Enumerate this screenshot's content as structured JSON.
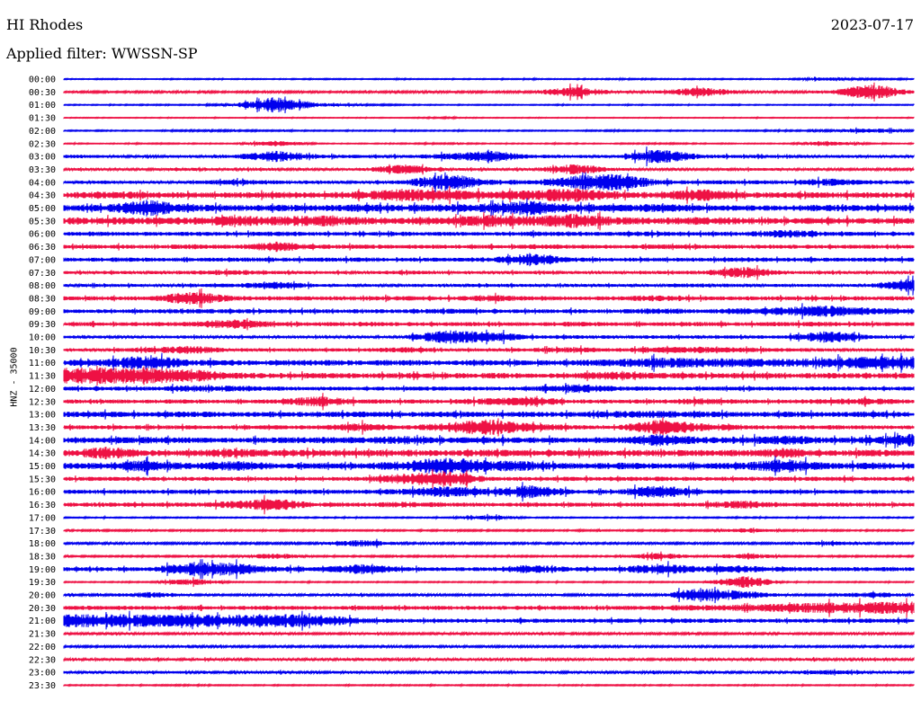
{
  "header": {
    "station": "HI Rhodes",
    "date": "2023-07-17",
    "filter_label": "Applied filter: WWSSN-SP",
    "channel_label": "HNZ - 35000"
  },
  "chart_data": {
    "type": "line",
    "title": "HI Rhodes",
    "subtitle": "Applied filter: WWSSN-SP",
    "ylabel": "HNZ - 35000",
    "colors": [
      "#0000ee",
      "#ee1144"
    ],
    "grid": false,
    "legend": "none",
    "series": [
      {
        "time": "00:00",
        "activity": [
          0.05,
          0.05,
          0.04,
          0.06,
          0.05,
          0.05,
          0.06,
          0.05,
          0.06,
          0.05,
          0.05,
          0.06,
          0.05,
          0.07,
          0.07,
          0.06,
          0.06,
          0.05,
          0.2,
          0.08,
          0.06
        ]
      },
      {
        "time": "00:30",
        "activity": [
          0.08,
          0.1,
          0.09,
          0.12,
          0.09,
          0.1,
          0.1,
          0.09,
          0.12,
          0.11,
          0.1,
          0.11,
          0.55,
          0.12,
          0.15,
          0.5,
          0.12,
          0.1,
          0.18,
          0.8,
          0.15
        ]
      },
      {
        "time": "01:00",
        "activity": [
          0.05,
          0.05,
          0.06,
          0.05,
          0.15,
          0.85,
          0.2,
          0.1,
          0.06,
          0.05,
          0.05,
          0.05,
          0.05,
          0.05,
          0.05,
          0.05,
          0.05,
          0.05,
          0.05,
          0.05,
          0.05
        ]
      },
      {
        "time": "01:30",
        "activity": [
          0.04,
          0.04,
          0.04,
          0.04,
          0.04,
          0.04,
          0.04,
          0.04,
          0.04,
          0.08,
          0.04,
          0.04,
          0.04,
          0.04,
          0.04,
          0.04,
          0.04,
          0.04,
          0.04,
          0.04,
          0.04
        ]
      },
      {
        "time": "02:00",
        "activity": [
          0.05,
          0.06,
          0.05,
          0.1,
          0.08,
          0.07,
          0.06,
          0.05,
          0.07,
          0.06,
          0.05,
          0.06,
          0.05,
          0.07,
          0.06,
          0.05,
          0.06,
          0.07,
          0.1,
          0.25,
          0.08
        ]
      },
      {
        "time": "02:30",
        "activity": [
          0.06,
          0.05,
          0.06,
          0.06,
          0.05,
          0.3,
          0.06,
          0.05,
          0.06,
          0.07,
          0.06,
          0.05,
          0.06,
          0.05,
          0.08,
          0.06,
          0.05,
          0.06,
          0.25,
          0.06,
          0.05
        ]
      },
      {
        "time": "03:00",
        "activity": [
          0.2,
          0.15,
          0.12,
          0.15,
          0.18,
          0.6,
          0.2,
          0.18,
          0.15,
          0.3,
          0.6,
          0.2,
          0.15,
          0.14,
          0.8,
          0.2,
          0.18,
          0.15,
          0.14,
          0.15,
          0.15
        ]
      },
      {
        "time": "03:30",
        "activity": [
          0.15,
          0.12,
          0.12,
          0.15,
          0.14,
          0.14,
          0.12,
          0.12,
          0.5,
          0.15,
          0.14,
          0.13,
          0.55,
          0.14,
          0.13,
          0.12,
          0.15,
          0.13,
          0.12,
          0.12,
          0.13
        ]
      },
      {
        "time": "04:00",
        "activity": [
          0.15,
          0.18,
          0.15,
          0.16,
          0.3,
          0.2,
          0.18,
          0.16,
          0.2,
          0.95,
          0.3,
          0.2,
          0.7,
          0.9,
          0.25,
          0.2,
          0.2,
          0.2,
          0.4,
          0.2,
          0.18
        ]
      },
      {
        "time": "04:30",
        "activity": [
          0.3,
          0.4,
          0.35,
          0.3,
          0.3,
          0.35,
          0.3,
          0.4,
          0.7,
          0.55,
          0.4,
          0.5,
          0.75,
          0.4,
          0.3,
          0.65,
          0.3,
          0.3,
          0.3,
          0.3,
          0.3
        ]
      },
      {
        "time": "05:00",
        "activity": [
          0.3,
          0.35,
          0.9,
          0.35,
          0.3,
          0.35,
          0.3,
          0.4,
          0.35,
          0.4,
          0.45,
          0.8,
          0.4,
          0.35,
          0.45,
          0.3,
          0.3,
          0.3,
          0.35,
          0.3,
          0.3
        ]
      },
      {
        "time": "05:30",
        "activity": [
          0.35,
          0.4,
          0.35,
          0.4,
          0.55,
          0.45,
          0.6,
          0.4,
          0.35,
          0.4,
          0.65,
          0.5,
          0.8,
          0.4,
          0.35,
          0.4,
          0.35,
          0.3,
          0.35,
          0.3,
          0.3
        ]
      },
      {
        "time": "06:00",
        "activity": [
          0.2,
          0.22,
          0.2,
          0.2,
          0.2,
          0.25,
          0.2,
          0.2,
          0.22,
          0.2,
          0.2,
          0.25,
          0.22,
          0.2,
          0.25,
          0.2,
          0.22,
          0.45,
          0.2,
          0.2,
          0.2
        ]
      },
      {
        "time": "06:30",
        "activity": [
          0.2,
          0.22,
          0.2,
          0.25,
          0.2,
          0.55,
          0.25,
          0.22,
          0.2,
          0.22,
          0.2,
          0.25,
          0.22,
          0.2,
          0.25,
          0.22,
          0.2,
          0.22,
          0.2,
          0.2,
          0.2
        ]
      },
      {
        "time": "07:00",
        "activity": [
          0.2,
          0.22,
          0.22,
          0.2,
          0.2,
          0.22,
          0.2,
          0.22,
          0.2,
          0.2,
          0.22,
          0.7,
          0.22,
          0.2,
          0.22,
          0.2,
          0.25,
          0.22,
          0.2,
          0.22,
          0.2
        ]
      },
      {
        "time": "07:30",
        "activity": [
          0.15,
          0.16,
          0.15,
          0.2,
          0.3,
          0.16,
          0.15,
          0.15,
          0.2,
          0.16,
          0.15,
          0.16,
          0.15,
          0.16,
          0.15,
          0.2,
          0.6,
          0.15,
          0.16,
          0.15,
          0.15
        ]
      },
      {
        "time": "08:00",
        "activity": [
          0.15,
          0.16,
          0.15,
          0.16,
          0.2,
          0.4,
          0.16,
          0.15,
          0.16,
          0.15,
          0.16,
          0.15,
          0.16,
          0.15,
          0.16,
          0.2,
          0.16,
          0.15,
          0.16,
          0.15,
          0.8
        ]
      },
      {
        "time": "08:30",
        "activity": [
          0.2,
          0.22,
          0.2,
          0.75,
          0.25,
          0.22,
          0.2,
          0.22,
          0.25,
          0.2,
          0.35,
          0.22,
          0.2,
          0.22,
          0.3,
          0.22,
          0.2,
          0.22,
          0.2,
          0.22,
          0.2
        ]
      },
      {
        "time": "09:00",
        "activity": [
          0.2,
          0.22,
          0.2,
          0.25,
          0.2,
          0.22,
          0.2,
          0.22,
          0.2,
          0.25,
          0.22,
          0.2,
          0.22,
          0.2,
          0.3,
          0.22,
          0.35,
          0.45,
          0.6,
          0.35,
          0.3
        ]
      },
      {
        "time": "09:30",
        "activity": [
          0.2,
          0.22,
          0.2,
          0.25,
          0.55,
          0.22,
          0.2,
          0.25,
          0.22,
          0.2,
          0.22,
          0.2,
          0.25,
          0.22,
          0.2,
          0.22,
          0.2,
          0.22,
          0.25,
          0.2,
          0.2
        ]
      },
      {
        "time": "10:00",
        "activity": [
          0.15,
          0.16,
          0.15,
          0.16,
          0.15,
          0.16,
          0.15,
          0.16,
          0.15,
          0.75,
          0.55,
          0.2,
          0.18,
          0.16,
          0.2,
          0.18,
          0.16,
          0.18,
          0.65,
          0.18,
          0.15
        ]
      },
      {
        "time": "10:30",
        "activity": [
          0.15,
          0.16,
          0.25,
          0.45,
          0.16,
          0.15,
          0.18,
          0.16,
          0.3,
          0.15,
          0.16,
          0.2,
          0.3,
          0.2,
          0.3,
          0.35,
          0.25,
          0.2,
          0.18,
          0.16,
          0.15
        ]
      },
      {
        "time": "11:00",
        "activity": [
          0.3,
          0.35,
          0.85,
          0.3,
          0.3,
          0.25,
          0.3,
          0.25,
          0.3,
          0.25,
          0.3,
          0.25,
          0.3,
          0.4,
          0.55,
          0.5,
          0.45,
          0.4,
          0.5,
          0.7,
          0.75
        ]
      },
      {
        "time": "11:30",
        "activity": [
          0.85,
          0.85,
          0.8,
          0.7,
          0.3,
          0.25,
          0.3,
          0.25,
          0.3,
          0.25,
          0.3,
          0.25,
          0.3,
          0.45,
          0.3,
          0.25,
          0.3,
          0.25,
          0.3,
          0.25,
          0.25
        ]
      },
      {
        "time": "12:00",
        "activity": [
          0.2,
          0.22,
          0.2,
          0.35,
          0.3,
          0.22,
          0.2,
          0.22,
          0.2,
          0.22,
          0.2,
          0.22,
          0.5,
          0.25,
          0.22,
          0.2,
          0.22,
          0.2,
          0.22,
          0.2,
          0.2
        ]
      },
      {
        "time": "12:30",
        "activity": [
          0.2,
          0.22,
          0.2,
          0.22,
          0.2,
          0.22,
          0.55,
          0.22,
          0.2,
          0.22,
          0.35,
          0.5,
          0.22,
          0.2,
          0.22,
          0.35,
          0.22,
          0.2,
          0.3,
          0.35,
          0.2
        ]
      },
      {
        "time": "13:00",
        "activity": [
          0.3,
          0.3,
          0.25,
          0.3,
          0.25,
          0.3,
          0.25,
          0.3,
          0.25,
          0.3,
          0.25,
          0.3,
          0.25,
          0.35,
          0.4,
          0.3,
          0.25,
          0.3,
          0.25,
          0.3,
          0.25
        ]
      },
      {
        "time": "13:30",
        "activity": [
          0.2,
          0.22,
          0.2,
          0.22,
          0.2,
          0.22,
          0.2,
          0.45,
          0.2,
          0.5,
          0.85,
          0.4,
          0.22,
          0.2,
          0.8,
          0.45,
          0.22,
          0.2,
          0.22,
          0.2,
          0.2
        ]
      },
      {
        "time": "14:00",
        "activity": [
          0.25,
          0.3,
          0.35,
          0.3,
          0.25,
          0.3,
          0.35,
          0.3,
          0.45,
          0.3,
          0.35,
          0.3,
          0.25,
          0.3,
          0.65,
          0.3,
          0.35,
          0.5,
          0.3,
          0.35,
          0.7
        ]
      },
      {
        "time": "14:30",
        "activity": [
          0.3,
          0.65,
          0.35,
          0.3,
          0.5,
          0.3,
          0.35,
          0.3,
          0.35,
          0.3,
          0.35,
          0.3,
          0.35,
          0.3,
          0.35,
          0.3,
          0.35,
          0.55,
          0.3,
          0.35,
          0.3
        ]
      },
      {
        "time": "15:00",
        "activity": [
          0.3,
          0.35,
          0.65,
          0.3,
          0.55,
          0.3,
          0.3,
          0.3,
          0.5,
          0.95,
          0.6,
          0.5,
          0.3,
          0.35,
          0.3,
          0.3,
          0.35,
          0.75,
          0.3,
          0.35,
          0.3
        ]
      },
      {
        "time": "15:30",
        "activity": [
          0.2,
          0.22,
          0.2,
          0.22,
          0.2,
          0.22,
          0.2,
          0.22,
          0.55,
          0.85,
          0.22,
          0.2,
          0.22,
          0.2,
          0.22,
          0.2,
          0.22,
          0.2,
          0.22,
          0.2,
          0.2
        ]
      },
      {
        "time": "16:00",
        "activity": [
          0.2,
          0.22,
          0.2,
          0.22,
          0.2,
          0.22,
          0.2,
          0.22,
          0.3,
          0.6,
          0.3,
          0.7,
          0.22,
          0.2,
          0.75,
          0.22,
          0.2,
          0.22,
          0.2,
          0.22,
          0.2
        ]
      },
      {
        "time": "16:30",
        "activity": [
          0.2,
          0.22,
          0.2,
          0.22,
          0.4,
          0.65,
          0.22,
          0.2,
          0.3,
          0.22,
          0.2,
          0.22,
          0.2,
          0.22,
          0.2,
          0.22,
          0.45,
          0.2,
          0.22,
          0.2,
          0.2
        ]
      },
      {
        "time": "17:00",
        "activity": [
          0.06,
          0.06,
          0.06,
          0.06,
          0.06,
          0.06,
          0.06,
          0.06,
          0.06,
          0.06,
          0.25,
          0.06,
          0.06,
          0.06,
          0.06,
          0.06,
          0.06,
          0.06,
          0.06,
          0.06,
          0.06
        ]
      },
      {
        "time": "17:30",
        "activity": [
          0.08,
          0.08,
          0.08,
          0.08,
          0.08,
          0.08,
          0.08,
          0.08,
          0.08,
          0.08,
          0.08,
          0.08,
          0.08,
          0.08,
          0.08,
          0.08,
          0.25,
          0.08,
          0.08,
          0.08,
          0.08
        ]
      },
      {
        "time": "18:00",
        "activity": [
          0.1,
          0.12,
          0.1,
          0.12,
          0.1,
          0.12,
          0.1,
          0.35,
          0.12,
          0.1,
          0.12,
          0.1,
          0.12,
          0.1,
          0.12,
          0.1,
          0.12,
          0.1,
          0.25,
          0.12,
          0.1
        ]
      },
      {
        "time": "18:30",
        "activity": [
          0.08,
          0.08,
          0.08,
          0.08,
          0.08,
          0.3,
          0.08,
          0.08,
          0.08,
          0.08,
          0.08,
          0.08,
          0.08,
          0.08,
          0.35,
          0.08,
          0.3,
          0.08,
          0.08,
          0.08,
          0.08
        ]
      },
      {
        "time": "19:00",
        "activity": [
          0.2,
          0.22,
          0.2,
          0.7,
          0.65,
          0.3,
          0.22,
          0.55,
          0.22,
          0.2,
          0.22,
          0.45,
          0.22,
          0.2,
          0.6,
          0.3,
          0.4,
          0.22,
          0.2,
          0.22,
          0.2
        ]
      },
      {
        "time": "19:30",
        "activity": [
          0.06,
          0.06,
          0.06,
          0.35,
          0.06,
          0.06,
          0.06,
          0.06,
          0.06,
          0.06,
          0.06,
          0.06,
          0.06,
          0.06,
          0.06,
          0.06,
          0.6,
          0.06,
          0.06,
          0.06,
          0.06
        ]
      },
      {
        "time": "20:00",
        "activity": [
          0.1,
          0.12,
          0.3,
          0.12,
          0.1,
          0.12,
          0.1,
          0.12,
          0.1,
          0.12,
          0.1,
          0.12,
          0.1,
          0.12,
          0.1,
          0.75,
          0.4,
          0.12,
          0.1,
          0.35,
          0.1
        ]
      },
      {
        "time": "20:30",
        "activity": [
          0.2,
          0.22,
          0.2,
          0.22,
          0.2,
          0.22,
          0.2,
          0.22,
          0.2,
          0.22,
          0.2,
          0.22,
          0.2,
          0.22,
          0.25,
          0.3,
          0.35,
          0.45,
          0.55,
          0.6,
          0.65
        ]
      },
      {
        "time": "21:00",
        "activity": [
          0.65,
          0.7,
          0.65,
          0.7,
          0.65,
          0.7,
          0.65,
          0.3,
          0.2,
          0.22,
          0.2,
          0.22,
          0.2,
          0.22,
          0.2,
          0.22,
          0.2,
          0.22,
          0.2,
          0.22,
          0.2
        ]
      },
      {
        "time": "21:30",
        "activity": [
          0.1,
          0.12,
          0.1,
          0.12,
          0.1,
          0.12,
          0.1,
          0.12,
          0.1,
          0.12,
          0.1,
          0.12,
          0.1,
          0.12,
          0.1,
          0.12,
          0.1,
          0.12,
          0.1,
          0.12,
          0.1
        ]
      },
      {
        "time": "22:00",
        "activity": [
          0.1,
          0.12,
          0.1,
          0.12,
          0.1,
          0.12,
          0.1,
          0.12,
          0.1,
          0.12,
          0.1,
          0.12,
          0.1,
          0.12,
          0.1,
          0.12,
          0.1,
          0.12,
          0.1,
          0.12,
          0.1
        ]
      },
      {
        "time": "22:30",
        "activity": [
          0.12,
          0.14,
          0.12,
          0.14,
          0.12,
          0.14,
          0.12,
          0.14,
          0.12,
          0.14,
          0.12,
          0.14,
          0.12,
          0.14,
          0.12,
          0.14,
          0.12,
          0.14,
          0.12,
          0.14,
          0.12
        ]
      },
      {
        "time": "23:00",
        "activity": [
          0.12,
          0.14,
          0.12,
          0.14,
          0.12,
          0.14,
          0.12,
          0.14,
          0.12,
          0.14,
          0.12,
          0.14,
          0.12,
          0.14,
          0.12,
          0.14,
          0.12,
          0.14,
          0.25,
          0.14,
          0.12
        ]
      },
      {
        "time": "23:30",
        "activity": [
          0.06,
          0.06,
          0.06,
          0.08,
          0.06,
          0.06,
          0.06,
          0.06,
          0.06,
          0.06,
          0.06,
          0.06,
          0.06,
          0.06,
          0.06,
          0.06,
          0.06,
          0.06,
          0.06,
          0.06,
          0.06
        ]
      }
    ]
  }
}
